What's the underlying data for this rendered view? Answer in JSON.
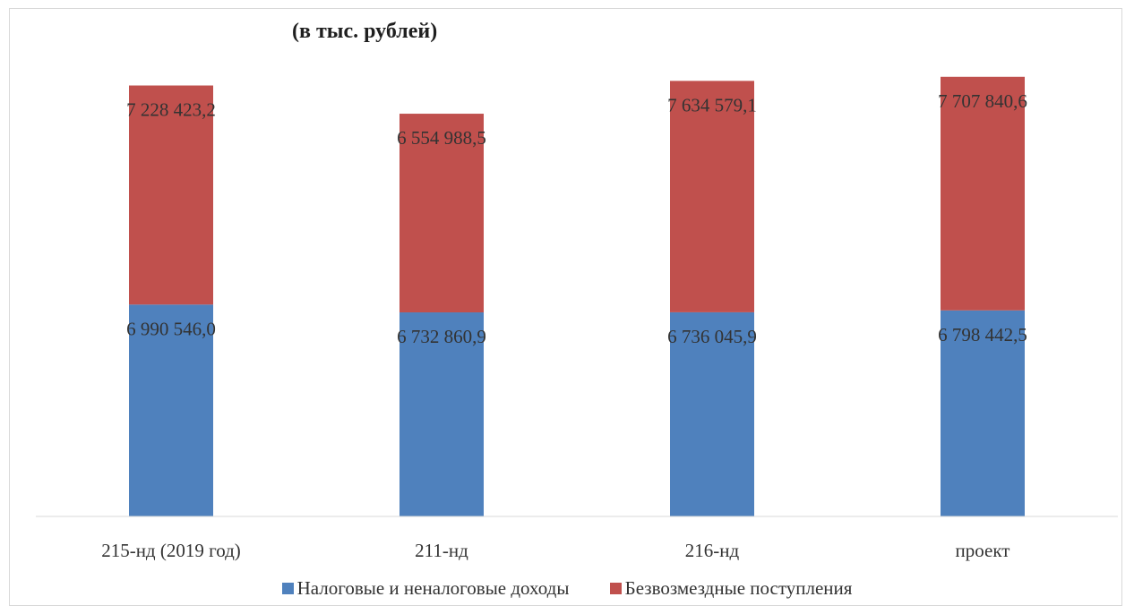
{
  "chart_data": {
    "type": "bar",
    "stacked": true,
    "title": "(в тыс. рублей)",
    "categories": [
      "215-нд (2019 год)",
      "211-нд",
      "216-нд",
      "проект"
    ],
    "series": [
      {
        "name": "Налоговые и неналоговые доходы",
        "color": "#4f81bd",
        "values": [
          6990546.0,
          6732860.9,
          6736045.9,
          6798442.5
        ],
        "labels": [
          "6 990 546,0",
          "6 732 860,9",
          "6 736 045,9",
          "6 798 442,5"
        ]
      },
      {
        "name": "Безвозмездные поступления",
        "color": "#c0504d",
        "values": [
          7228423.2,
          6554988.5,
          7634579.1,
          7707840.6
        ],
        "labels": [
          "7 228 423,2",
          "6 554 988,5",
          "7 634 579,1",
          "7 707 840,6"
        ]
      }
    ],
    "ylim": [
      0,
      14500000
    ],
    "grid": false,
    "legend_position": "bottom"
  }
}
